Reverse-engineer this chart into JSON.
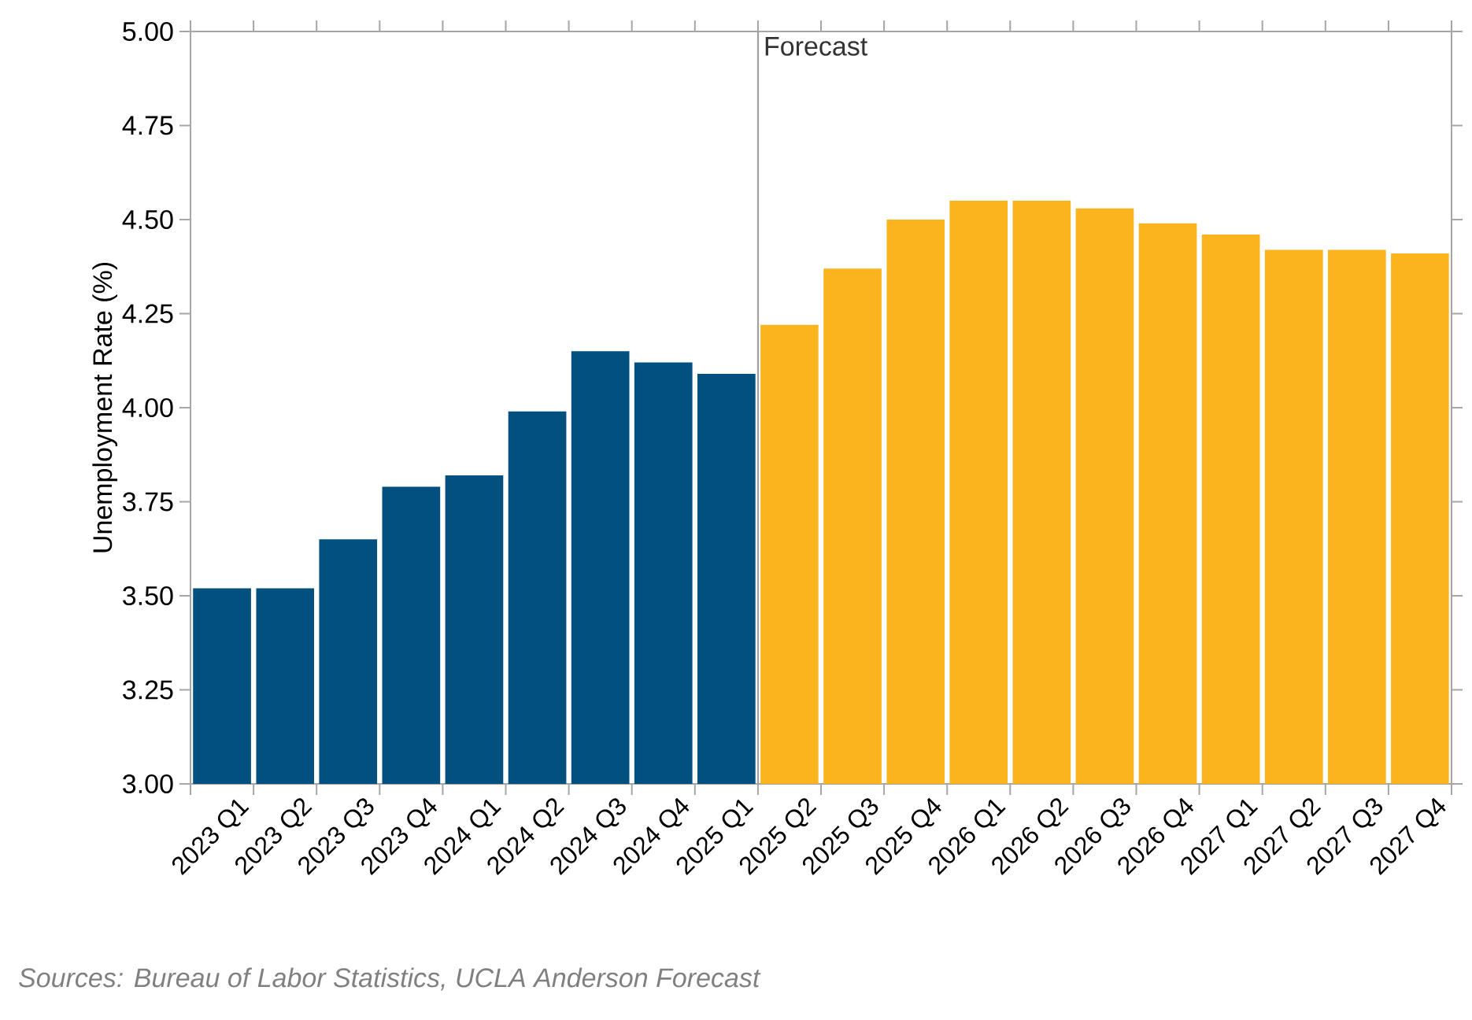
{
  "chart_data": {
    "type": "bar",
    "ylabel": "Unemployment Rate (%)",
    "categories": [
      "2023 Q1",
      "2023 Q2",
      "2023 Q3",
      "2023 Q4",
      "2024 Q1",
      "2024 Q2",
      "2024 Q3",
      "2024 Q4",
      "2025 Q1",
      "2025 Q2",
      "2025 Q3",
      "2025 Q4",
      "2026 Q1",
      "2026 Q2",
      "2026 Q3",
      "2026 Q4",
      "2027 Q1",
      "2027 Q2",
      "2027 Q3",
      "2027 Q4"
    ],
    "values": [
      3.52,
      3.52,
      3.65,
      3.79,
      3.82,
      3.99,
      4.15,
      4.12,
      4.09,
      4.22,
      4.37,
      4.5,
      4.55,
      4.55,
      4.53,
      4.49,
      4.46,
      4.42,
      4.42,
      4.41
    ],
    "colors": [
      "#02507f",
      "#02507f",
      "#02507f",
      "#02507f",
      "#02507f",
      "#02507f",
      "#02507f",
      "#02507f",
      "#02507f",
      "#fbb41e",
      "#fbb41e",
      "#fbb41e",
      "#fbb41e",
      "#fbb41e",
      "#fbb41e",
      "#fbb41e",
      "#fbb41e",
      "#fbb41e",
      "#fbb41e",
      "#fbb41e"
    ],
    "ylim": [
      3.0,
      5.0
    ],
    "yticks": [
      {
        "value": 3.0,
        "label": "3.00"
      },
      {
        "value": 3.25,
        "label": "3.25"
      },
      {
        "value": 3.5,
        "label": "3.50"
      },
      {
        "value": 3.75,
        "label": "3.75"
      },
      {
        "value": 4.0,
        "label": "4.00"
      },
      {
        "value": 4.25,
        "label": "4.25"
      },
      {
        "value": 4.5,
        "label": "4.50"
      },
      {
        "value": 4.75,
        "label": "4.75"
      },
      {
        "value": 5.0,
        "label": "5.00"
      }
    ],
    "ref_lines": [
      {
        "axis": "x",
        "value": "2025 Q2",
        "label": "Forecast",
        "color": "#a0a0a0"
      }
    ],
    "annotations": [
      "Sources: Bureau of Labor Statistics, UCLA Anderson Forecast"
    ],
    "grid": false
  }
}
